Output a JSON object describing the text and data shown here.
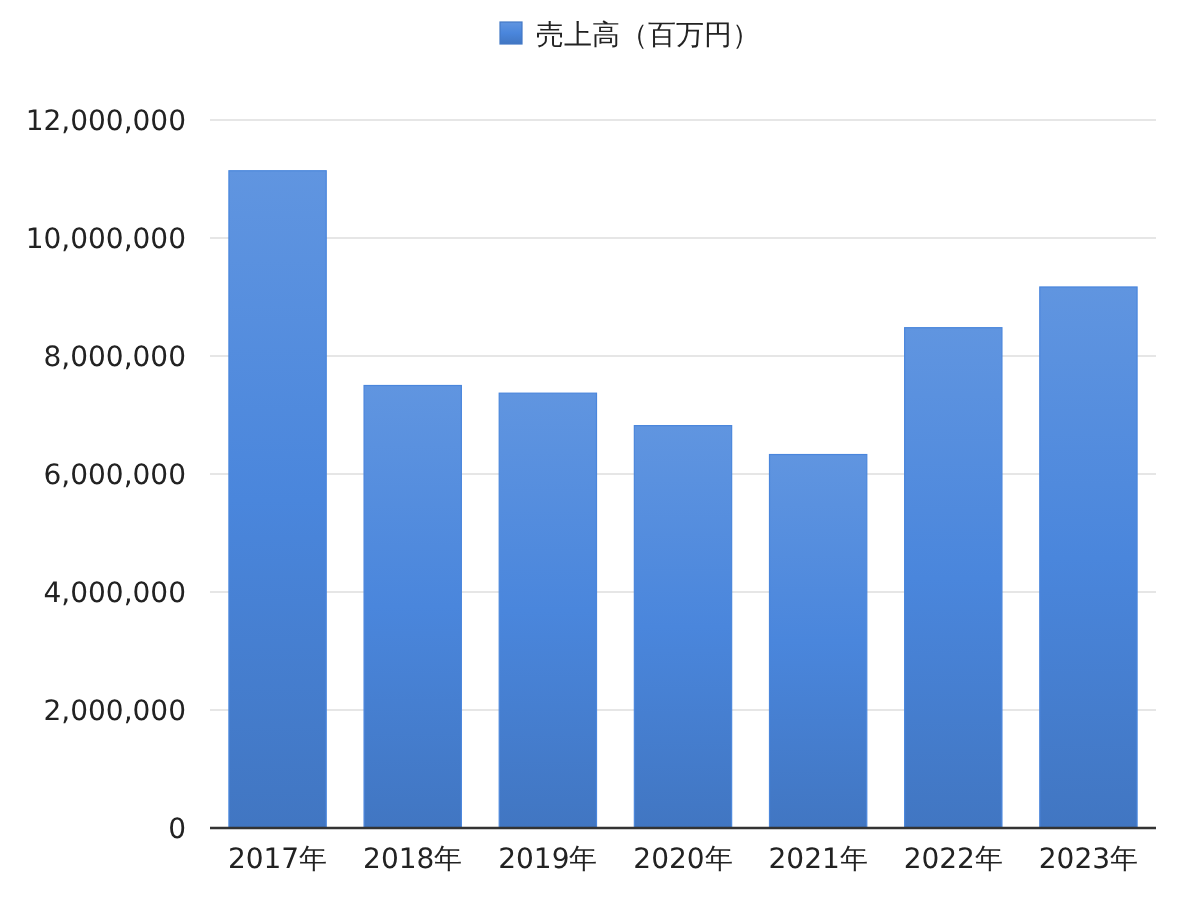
{
  "chart_data": {
    "type": "bar",
    "categories": [
      "2017年",
      "2018年",
      "2019年",
      "2020年",
      "2021年",
      "2022年",
      "2023年"
    ],
    "series": [
      {
        "name": "売上高（百万円）",
        "color": "#4a86dc",
        "values": [
          11140000,
          7500000,
          7370000,
          6820000,
          6330000,
          8480000,
          9170000
        ]
      }
    ],
    "ylim": [
      0,
      12000000
    ],
    "yticks": [
      {
        "value": 0,
        "label": "0"
      },
      {
        "value": 2000000,
        "label": "2,000,000"
      },
      {
        "value": 4000000,
        "label": "4,000,000"
      },
      {
        "value": 6000000,
        "label": "6,000,000"
      },
      {
        "value": 8000000,
        "label": "8,000,000"
      },
      {
        "value": 10000000,
        "label": "10,000,000"
      },
      {
        "value": 12000000,
        "label": "12,000,000"
      }
    ],
    "grid": "y",
    "legend": "top"
  }
}
